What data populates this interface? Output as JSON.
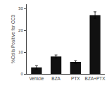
{
  "chart_data": {
    "type": "bar",
    "categories": [
      "Vehicle",
      "BZA",
      "PTX",
      "BZA+PTX"
    ],
    "values": [
      3.0,
      8.0,
      5.5,
      27.0
    ],
    "errors": [
      0.8,
      0.7,
      0.6,
      1.5
    ],
    "color": "#111111",
    "ylabel": "%Cells Positive for CC3",
    "ylim": [
      0,
      32
    ],
    "yticks": [
      0,
      10,
      20,
      30
    ],
    "grid": false
  }
}
